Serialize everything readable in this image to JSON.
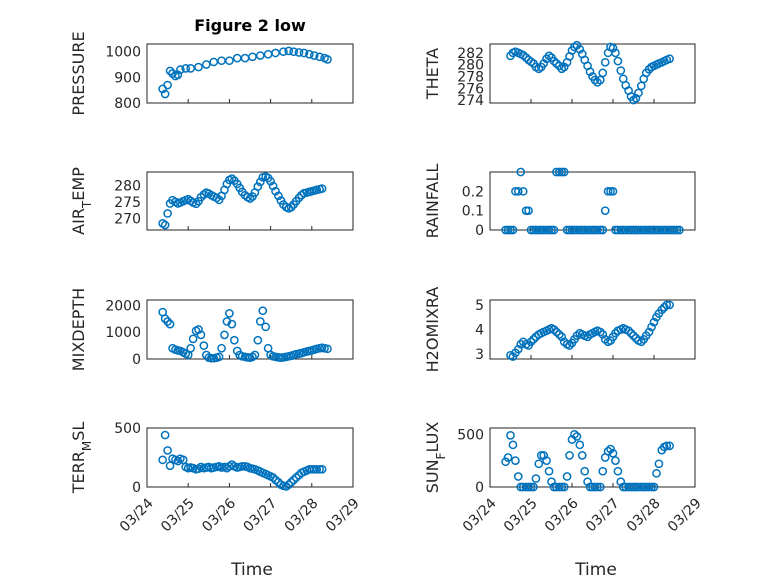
{
  "figure": {
    "title": "Figure 2 low",
    "xlabel": "Time",
    "marker_color": "#0072BD"
  },
  "chart_data": [
    {
      "type": "scatter",
      "title": "Figure 2 low",
      "ylabel": "PRESSURE",
      "xlabel": "",
      "xlim": [
        0,
        5
      ],
      "ylim": [
        800,
        1030
      ],
      "yticks": [
        800,
        900,
        1000
      ],
      "ytick_labels": [
        "800",
        "900",
        "1000"
      ],
      "xtick_labels": [],
      "grid": true,
      "minor_grid": true,
      "x": [
        0.38,
        0.44,
        0.5,
        0.56,
        0.62,
        0.69,
        0.75,
        0.81,
        0.94,
        1.06,
        1.25,
        1.44,
        1.62,
        1.81,
        2.0,
        2.19,
        2.38,
        2.56,
        2.75,
        2.94,
        3.12,
        3.31,
        3.44,
        3.56,
        3.69,
        3.81,
        3.94,
        4.06,
        4.19,
        4.31,
        4.38
      ],
      "y": [
        855,
        835,
        870,
        925,
        915,
        905,
        910,
        930,
        935,
        935,
        940,
        950,
        960,
        965,
        965,
        975,
        975,
        980,
        985,
        990,
        995,
        1000,
        1003,
        1000,
        997,
        995,
        990,
        985,
        980,
        975,
        970
      ]
    },
    {
      "type": "scatter",
      "ylabel": "THETA",
      "xlabel": "",
      "xlim": [
        0,
        5
      ],
      "ylim": [
        273.5,
        283.5
      ],
      "yticks": [
        274,
        276,
        278,
        280,
        282
      ],
      "ytick_labels": [
        "274",
        "276",
        "278",
        "280",
        "282"
      ],
      "xtick_labels": [],
      "grid": true,
      "minor_grid": true,
      "x": [
        0.5,
        0.56,
        0.62,
        0.69,
        0.75,
        0.81,
        0.88,
        0.94,
        1.0,
        1.06,
        1.12,
        1.19,
        1.25,
        1.31,
        1.38,
        1.44,
        1.5,
        1.56,
        1.62,
        1.69,
        1.75,
        1.81,
        1.88,
        1.94,
        2.0,
        2.06,
        2.12,
        2.19,
        2.25,
        2.31,
        2.38,
        2.44,
        2.5,
        2.56,
        2.62,
        2.69,
        2.75,
        2.81,
        2.88,
        2.94,
        3.0,
        3.06,
        3.12,
        3.19,
        3.25,
        3.31,
        3.38,
        3.44,
        3.5,
        3.56,
        3.62,
        3.69,
        3.75,
        3.81,
        3.88,
        3.94,
        4.0,
        4.06,
        4.12,
        4.19,
        4.25,
        4.31,
        4.38
      ],
      "y": [
        281.5,
        282,
        282.2,
        282,
        281.8,
        281.6,
        281.2,
        280.8,
        280.5,
        280.2,
        279.6,
        279.3,
        279.6,
        280.2,
        281,
        281.5,
        281.2,
        280.6,
        280.2,
        279.8,
        279.3,
        279.6,
        280.4,
        281.4,
        282.4,
        283,
        283.3,
        282.6,
        281.8,
        280.8,
        279.8,
        278.8,
        278,
        277.4,
        277,
        277.4,
        278.6,
        280.4,
        282,
        283,
        282.8,
        282,
        280.6,
        279,
        277.6,
        276.5,
        275.6,
        274.6,
        274,
        274.3,
        275.2,
        276.4,
        277.6,
        278.6,
        279.2,
        279.6,
        279.8,
        280,
        280.2,
        280.4,
        280.6,
        280.8,
        281
      ]
    },
    {
      "type": "scatter",
      "ylabel": "AIR_TEMP",
      "xlabel": "",
      "xlim": [
        0,
        5
      ],
      "ylim": [
        266.5,
        284
      ],
      "yticks": [
        270,
        275,
        280
      ],
      "ytick_labels": [
        "270",
        "275",
        "280"
      ],
      "xtick_labels": [],
      "grid": true,
      "minor_grid": true,
      "x": [
        0.38,
        0.44,
        0.5,
        0.56,
        0.62,
        0.69,
        0.75,
        0.81,
        0.88,
        0.94,
        1.0,
        1.06,
        1.12,
        1.19,
        1.25,
        1.31,
        1.38,
        1.44,
        1.5,
        1.56,
        1.62,
        1.69,
        1.75,
        1.81,
        1.88,
        1.94,
        2.0,
        2.06,
        2.12,
        2.19,
        2.25,
        2.31,
        2.38,
        2.44,
        2.5,
        2.56,
        2.62,
        2.69,
        2.75,
        2.81,
        2.88,
        2.94,
        3.0,
        3.06,
        3.12,
        3.19,
        3.25,
        3.31,
        3.38,
        3.44,
        3.5,
        3.56,
        3.62,
        3.69,
        3.75,
        3.81,
        3.88,
        3.94,
        4.0,
        4.06,
        4.12,
        4.19,
        4.25
      ],
      "y": [
        268.5,
        268,
        271.5,
        274.5,
        275.5,
        275,
        274.5,
        274.8,
        275.2,
        275.5,
        275.8,
        275.3,
        274.8,
        274.4,
        275.2,
        276.4,
        277.2,
        277.8,
        277.5,
        277,
        276.6,
        276.2,
        275.6,
        276.8,
        278.6,
        280.4,
        281.6,
        282,
        281.4,
        280.4,
        279.2,
        278,
        277,
        276.4,
        276,
        276.6,
        277.8,
        279.6,
        281,
        282.4,
        282.6,
        282.2,
        281.2,
        279.8,
        278.2,
        276.8,
        275.4,
        274.2,
        273.4,
        273,
        273.4,
        274.2,
        275.2,
        276.2,
        277,
        277.6,
        277.8,
        278,
        278.2,
        278.4,
        278.6,
        278.8,
        279
      ]
    },
    {
      "type": "scatter",
      "ylabel": "RAINFALL",
      "xlabel": "",
      "xlim": [
        0,
        5
      ],
      "ylim": [
        0,
        0.3
      ],
      "yticks": [
        0,
        0.1,
        0.2
      ],
      "ytick_labels": [
        "0",
        "0.1",
        "0.2"
      ],
      "xtick_labels": [],
      "grid": true,
      "minor_grid": true,
      "x": [
        0.38,
        0.44,
        0.5,
        0.56,
        0.62,
        0.69,
        0.75,
        0.81,
        0.88,
        0.94,
        1.0,
        1.06,
        1.12,
        1.19,
        1.25,
        1.31,
        1.38,
        1.44,
        1.5,
        1.56,
        1.62,
        1.69,
        1.75,
        1.81,
        1.88,
        1.94,
        2.0,
        2.06,
        2.12,
        2.19,
        2.25,
        2.31,
        2.38,
        2.44,
        2.5,
        2.56,
        2.62,
        2.69,
        2.75,
        2.81,
        2.88,
        2.94,
        3.0,
        3.06,
        3.12,
        3.19,
        3.25,
        3.31,
        3.38,
        3.44,
        3.5,
        3.56,
        3.62,
        3.69,
        3.75,
        3.81,
        3.88,
        3.94,
        4.0,
        4.06,
        4.12,
        4.19,
        4.25,
        4.31,
        4.38,
        4.44,
        4.5,
        4.56,
        4.62
      ],
      "y": [
        0,
        0,
        0,
        0,
        0.2,
        0.2,
        0.3,
        0.2,
        0.1,
        0.1,
        0,
        0,
        0,
        0,
        0,
        0,
        0,
        0,
        0,
        0,
        0.3,
        0.3,
        0.3,
        0.3,
        0,
        0,
        0,
        0,
        0,
        0,
        0,
        0,
        0,
        0,
        0,
        0,
        0,
        0,
        0,
        0.1,
        0.2,
        0.2,
        0.2,
        0,
        0,
        0,
        0,
        0,
        0,
        0,
        0,
        0,
        0,
        0,
        0,
        0,
        0,
        0,
        0,
        0,
        0,
        0,
        0,
        0,
        0,
        0,
        0,
        0,
        0
      ]
    },
    {
      "type": "scatter",
      "ylabel": "MIXDEPTH",
      "xlabel": "",
      "xlim": [
        0,
        5
      ],
      "ylim": [
        0,
        2200
      ],
      "yticks": [
        0,
        1000,
        2000
      ],
      "ytick_labels": [
        "0",
        "1000",
        "2000"
      ],
      "xtick_labels": [],
      "grid": true,
      "minor_grid": true,
      "x": [
        0.38,
        0.44,
        0.5,
        0.56,
        0.62,
        0.69,
        0.75,
        0.81,
        0.88,
        0.94,
        1.0,
        1.06,
        1.12,
        1.19,
        1.25,
        1.31,
        1.38,
        1.44,
        1.5,
        1.56,
        1.62,
        1.69,
        1.75,
        1.81,
        1.88,
        1.94,
        2.0,
        2.06,
        2.12,
        2.19,
        2.25,
        2.31,
        2.38,
        2.44,
        2.5,
        2.56,
        2.62,
        2.69,
        2.75,
        2.81,
        2.88,
        2.94,
        3.0,
        3.06,
        3.12,
        3.19,
        3.25,
        3.31,
        3.38,
        3.44,
        3.5,
        3.56,
        3.62,
        3.69,
        3.75,
        3.81,
        3.88,
        3.94,
        4.0,
        4.06,
        4.12,
        4.19,
        4.25,
        4.31,
        4.38
      ],
      "y": [
        1750,
        1500,
        1400,
        1300,
        400,
        350,
        320,
        300,
        250,
        200,
        150,
        400,
        750,
        1050,
        1100,
        900,
        500,
        150,
        50,
        30,
        30,
        50,
        80,
        400,
        900,
        1400,
        1700,
        1300,
        700,
        300,
        150,
        100,
        80,
        60,
        50,
        80,
        150,
        700,
        1400,
        1800,
        1200,
        400,
        150,
        100,
        80,
        60,
        50,
        60,
        80,
        100,
        120,
        150,
        180,
        200,
        220,
        250,
        280,
        300,
        320,
        350,
        380,
        400,
        420,
        400,
        380
      ]
    },
    {
      "type": "scatter",
      "ylabel": "H2OMIXRA",
      "xlabel": "",
      "xlim": [
        0,
        5
      ],
      "ylim": [
        2.8,
        5.2
      ],
      "yticks": [
        3,
        4,
        5
      ],
      "ytick_labels": [
        "3",
        "4",
        "5"
      ],
      "xtick_labels": [],
      "grid": true,
      "minor_grid": true,
      "x": [
        0.5,
        0.56,
        0.62,
        0.69,
        0.75,
        0.81,
        0.88,
        0.94,
        1.0,
        1.06,
        1.12,
        1.19,
        1.25,
        1.31,
        1.38,
        1.44,
        1.5,
        1.56,
        1.62,
        1.69,
        1.75,
        1.81,
        1.88,
        1.94,
        2.0,
        2.06,
        2.12,
        2.19,
        2.25,
        2.31,
        2.38,
        2.44,
        2.5,
        2.56,
        2.62,
        2.69,
        2.75,
        2.81,
        2.88,
        2.94,
        3.0,
        3.06,
        3.12,
        3.19,
        3.25,
        3.31,
        3.38,
        3.44,
        3.5,
        3.56,
        3.62,
        3.69,
        3.75,
        3.81,
        3.88,
        3.94,
        4.0,
        4.06,
        4.12,
        4.19,
        4.25,
        4.31,
        4.38
      ],
      "y": [
        2.95,
        2.9,
        3.05,
        3.2,
        3.4,
        3.5,
        3.4,
        3.35,
        3.5,
        3.6,
        3.7,
        3.8,
        3.85,
        3.9,
        3.95,
        4.0,
        4.05,
        4.0,
        3.9,
        3.8,
        3.7,
        3.5,
        3.4,
        3.35,
        3.45,
        3.6,
        3.75,
        3.85,
        3.8,
        3.75,
        3.7,
        3.8,
        3.85,
        3.9,
        3.95,
        3.9,
        3.8,
        3.6,
        3.5,
        3.55,
        3.7,
        3.85,
        3.95,
        4.0,
        4.05,
        4.0,
        3.95,
        3.85,
        3.75,
        3.65,
        3.55,
        3.5,
        3.6,
        3.75,
        3.9,
        4.1,
        4.3,
        4.5,
        4.65,
        4.8,
        4.9,
        5.0,
        5.0
      ]
    },
    {
      "type": "scatter",
      "ylabel": "TERR_MSL",
      "xlabel": "Time",
      "xlim": [
        0,
        5
      ],
      "ylim": [
        0,
        500
      ],
      "yticks": [
        0,
        500
      ],
      "ytick_labels": [
        "0",
        "500"
      ],
      "xticks": [
        0,
        1,
        2,
        3,
        4,
        5
      ],
      "xtick_labels": [
        "03/24",
        "03/25",
        "03/26",
        "03/27",
        "03/28",
        "03/29"
      ],
      "grid": true,
      "minor_grid": true,
      "x": [
        0.38,
        0.44,
        0.5,
        0.56,
        0.62,
        0.69,
        0.75,
        0.81,
        0.88,
        0.94,
        1.0,
        1.06,
        1.12,
        1.19,
        1.25,
        1.31,
        1.38,
        1.44,
        1.5,
        1.56,
        1.62,
        1.69,
        1.75,
        1.81,
        1.88,
        1.94,
        2.0,
        2.06,
        2.12,
        2.19,
        2.25,
        2.31,
        2.38,
        2.44,
        2.5,
        2.56,
        2.62,
        2.69,
        2.75,
        2.81,
        2.88,
        2.94,
        3.0,
        3.06,
        3.12,
        3.19,
        3.25,
        3.31,
        3.38,
        3.44,
        3.5,
        3.56,
        3.62,
        3.69,
        3.75,
        3.81,
        3.88,
        3.94,
        4.0,
        4.06,
        4.12,
        4.19,
        4.25
      ],
      "y": [
        230,
        440,
        310,
        180,
        240,
        230,
        220,
        240,
        230,
        170,
        160,
        165,
        160,
        150,
        155,
        170,
        160,
        165,
        170,
        160,
        165,
        170,
        175,
        165,
        170,
        160,
        175,
        190,
        175,
        165,
        170,
        175,
        175,
        170,
        160,
        155,
        150,
        140,
        130,
        120,
        110,
        100,
        90,
        80,
        60,
        40,
        20,
        10,
        5,
        20,
        40,
        60,
        80,
        100,
        120,
        130,
        140,
        150,
        150,
        150,
        150,
        150,
        150
      ]
    },
    {
      "type": "scatter",
      "ylabel": "SUN_FLUX",
      "xlabel": "Time",
      "xlim": [
        0,
        5
      ],
      "ylim": [
        0,
        560
      ],
      "yticks": [
        0,
        500
      ],
      "ytick_labels": [
        "0",
        "500"
      ],
      "xticks": [
        0,
        1,
        2,
        3,
        4,
        5
      ],
      "xtick_labels": [
        "03/24",
        "03/25",
        "03/26",
        "03/27",
        "03/28",
        "03/29"
      ],
      "grid": true,
      "minor_grid": true,
      "x": [
        0.38,
        0.44,
        0.5,
        0.56,
        0.62,
        0.69,
        0.75,
        0.81,
        0.88,
        0.94,
        1.0,
        1.06,
        1.12,
        1.19,
        1.25,
        1.31,
        1.38,
        1.44,
        1.5,
        1.56,
        1.62,
        1.69,
        1.75,
        1.81,
        1.88,
        1.94,
        2.0,
        2.06,
        2.12,
        2.19,
        2.25,
        2.31,
        2.38,
        2.44,
        2.5,
        2.56,
        2.62,
        2.69,
        2.75,
        2.81,
        2.88,
        2.94,
        3.0,
        3.06,
        3.12,
        3.19,
        3.25,
        3.31,
        3.38,
        3.44,
        3.5,
        3.56,
        3.62,
        3.69,
        3.75,
        3.81,
        3.88,
        3.94,
        4.0,
        4.06,
        4.12,
        4.19,
        4.25,
        4.31,
        4.38
      ],
      "y": [
        240,
        280,
        490,
        400,
        250,
        100,
        0,
        0,
        0,
        0,
        0,
        0,
        80,
        220,
        300,
        300,
        250,
        150,
        50,
        0,
        0,
        0,
        0,
        0,
        100,
        300,
        450,
        500,
        480,
        400,
        300,
        150,
        50,
        0,
        0,
        0,
        0,
        0,
        150,
        280,
        340,
        360,
        320,
        250,
        150,
        50,
        0,
        0,
        0,
        0,
        0,
        0,
        0,
        0,
        0,
        0,
        0,
        0,
        0,
        130,
        220,
        350,
        380,
        390,
        390
      ]
    }
  ]
}
